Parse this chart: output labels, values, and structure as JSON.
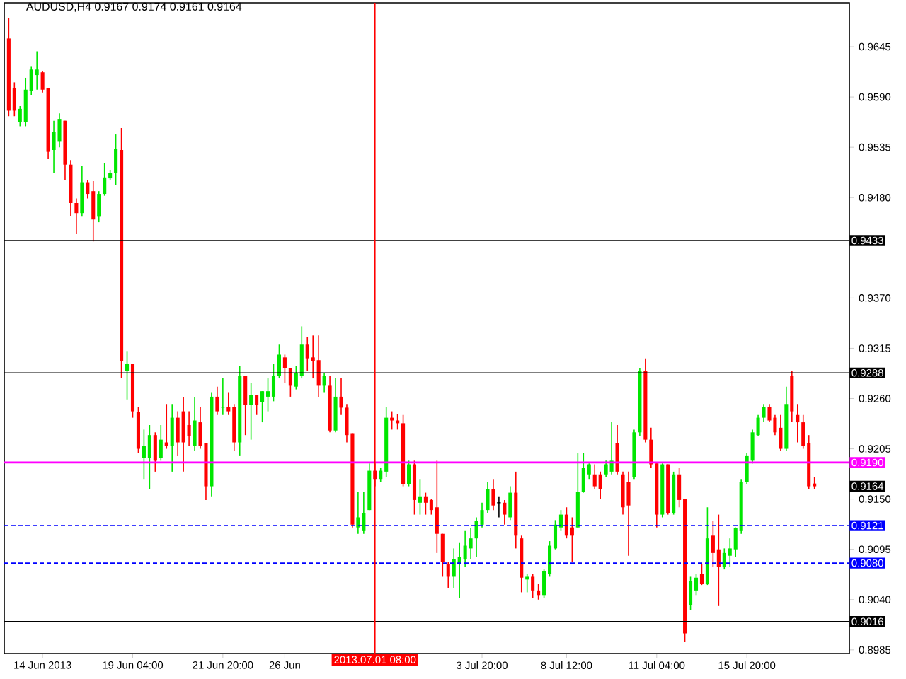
{
  "chart_data": {
    "type": "candlestick",
    "title": "AUDUSD,H4  0.9167 0.9174 0.9161 0.9164",
    "categories": [
      null,
      null,
      null,
      null,
      null,
      null,
      "14 Jun 2013",
      null,
      null,
      null,
      null,
      null,
      null,
      null,
      null,
      null,
      null,
      null,
      null,
      null,
      null,
      null,
      "19 Jun 04:00",
      null,
      null,
      null,
      null,
      null,
      null,
      null,
      null,
      null,
      null,
      null,
      null,
      null,
      null,
      null,
      "21 Jun 20:00",
      null,
      null,
      null,
      null,
      null,
      null,
      null,
      null,
      null,
      null,
      "26 Jun",
      null,
      null,
      null,
      null,
      null,
      null,
      null,
      null,
      null,
      null,
      null,
      null,
      null,
      null,
      null,
      "2013.07.01 08:00",
      null,
      null,
      null,
      null,
      null,
      null,
      null,
      null,
      null,
      null,
      null,
      null,
      null,
      null,
      null,
      null,
      null,
      null,
      "3 Jul 20:00",
      null,
      null,
      null,
      null,
      null,
      null,
      null,
      null,
      null,
      null,
      null,
      null,
      null,
      null,
      "8 Jul 12:00",
      null,
      null,
      null,
      null,
      null,
      null,
      null,
      null,
      null,
      null,
      null,
      null,
      null,
      null,
      null,
      "11 Jul 04:00",
      null,
      null,
      null,
      null,
      null,
      null,
      null,
      null,
      null,
      null,
      null,
      null,
      null,
      null,
      null,
      "15 Jul 20:00",
      null,
      null,
      null,
      null,
      null,
      null,
      null,
      null,
      null,
      null,
      null,
      null
    ],
    "ohlc": [
      [
        0.9654,
        0.9676,
        0.9569,
        0.9575
      ],
      [
        0.96,
        0.9606,
        0.9569,
        0.9575
      ],
      [
        0.9563,
        0.958,
        0.9558,
        0.9577
      ],
      [
        0.9563,
        0.9611,
        0.9558,
        0.9598
      ],
      [
        0.9597,
        0.9623,
        0.9592,
        0.962
      ],
      [
        0.9614,
        0.964,
        0.9598,
        0.962
      ],
      [
        0.9617,
        0.9618,
        0.9595,
        0.9598
      ],
      [
        0.96,
        0.96,
        0.9522,
        0.953
      ],
      [
        0.9532,
        0.9564,
        0.9507,
        0.9552
      ],
      [
        0.9541,
        0.9572,
        0.9535,
        0.9566
      ],
      [
        0.9564,
        0.9564,
        0.9499,
        0.9516
      ],
      [
        0.9516,
        0.9521,
        0.946,
        0.9474
      ],
      [
        0.9474,
        0.9479,
        0.944,
        0.9463
      ],
      [
        0.9463,
        0.9515,
        0.9459,
        0.9496
      ],
      [
        0.9496,
        0.9499,
        0.9479,
        0.9484
      ],
      [
        0.9487,
        0.9498,
        0.9432,
        0.9456
      ],
      [
        0.9459,
        0.9487,
        0.9453,
        0.9484
      ],
      [
        0.9484,
        0.9518,
        0.9482,
        0.9502
      ],
      [
        0.9501,
        0.951,
        0.9499,
        0.9507
      ],
      [
        0.9507,
        0.9549,
        0.9494,
        0.9533
      ],
      [
        0.9532,
        0.9556,
        0.9282,
        0.9301
      ],
      [
        0.929,
        0.9312,
        0.9259,
        0.9298
      ],
      [
        0.9298,
        0.9298,
        0.9239,
        0.9246
      ],
      [
        0.9245,
        0.9251,
        0.92,
        0.9205
      ],
      [
        0.9195,
        0.9226,
        0.9172,
        0.9208
      ],
      [
        0.9195,
        0.9231,
        0.9161,
        0.922
      ],
      [
        0.922,
        0.9223,
        0.918,
        0.9192
      ],
      [
        0.9195,
        0.9231,
        0.9192,
        0.9215
      ],
      [
        0.9212,
        0.9254,
        0.9205,
        0.9208
      ],
      [
        0.9208,
        0.9254,
        0.918,
        0.9239
      ],
      [
        0.9239,
        0.9246,
        0.9197,
        0.9212
      ],
      [
        0.9246,
        0.9262,
        0.918,
        0.9212
      ],
      [
        0.9231,
        0.9246,
        0.9208,
        0.9219
      ],
      [
        0.9208,
        0.9262,
        0.9203,
        0.9236
      ],
      [
        0.9234,
        0.9251,
        0.9205,
        0.9208
      ],
      [
        0.9211,
        0.9211,
        0.9149,
        0.9164
      ],
      [
        0.9164,
        0.9267,
        0.9153,
        0.9262
      ],
      [
        0.9262,
        0.9273,
        0.9242,
        0.9246
      ],
      [
        0.925,
        0.9282,
        0.9242,
        0.9251
      ],
      [
        0.9251,
        0.9267,
        0.9242,
        0.9246
      ],
      [
        0.9251,
        0.9254,
        0.9203,
        0.9212
      ],
      [
        0.9212,
        0.9296,
        0.9197,
        0.9285
      ],
      [
        0.9285,
        0.9285,
        0.922,
        0.9253
      ],
      [
        0.9253,
        0.9277,
        0.9215,
        0.9264
      ],
      [
        0.9264,
        0.9264,
        0.9242,
        0.9253
      ],
      [
        0.9256,
        0.9268,
        0.9234,
        0.9268
      ],
      [
        0.9262,
        0.9282,
        0.9246,
        0.9268
      ],
      [
        0.9262,
        0.9298,
        0.9257,
        0.9285
      ],
      [
        0.9285,
        0.9319,
        0.9282,
        0.9308
      ],
      [
        0.9305,
        0.9308,
        0.9277,
        0.9293
      ],
      [
        0.9293,
        0.9293,
        0.9262,
        0.9274
      ],
      [
        0.9273,
        0.9296,
        0.927,
        0.9288
      ],
      [
        0.9285,
        0.9339,
        0.9282,
        0.9319
      ],
      [
        0.9319,
        0.9327,
        0.929,
        0.9304
      ],
      [
        0.9305,
        0.9329,
        0.9282,
        0.9301
      ],
      [
        0.9302,
        0.9329,
        0.9262,
        0.9274
      ],
      [
        0.9274,
        0.9288,
        0.9267,
        0.9285
      ],
      [
        0.9274,
        0.9285,
        0.9223,
        0.9225
      ],
      [
        0.9225,
        0.9282,
        0.9223,
        0.9262
      ],
      [
        0.9262,
        0.9282,
        0.9242,
        0.925
      ],
      [
        0.925,
        0.9254,
        0.9212,
        0.922
      ],
      [
        0.9222,
        0.9222,
        0.9119,
        0.9122
      ],
      [
        0.9119,
        0.9158,
        0.9112,
        0.913
      ],
      [
        0.9115,
        0.9158,
        0.9112,
        0.9135
      ],
      [
        0.9138,
        0.9189,
        0.9138,
        0.9181
      ],
      [
        0.9181,
        0.9189,
        0.9164,
        0.9172
      ],
      [
        0.9172,
        0.9184,
        0.9169,
        0.9181
      ],
      [
        0.918,
        0.9251,
        0.9174,
        0.9239
      ],
      [
        0.9239,
        0.9246,
        0.9226,
        0.9236
      ],
      [
        0.9236,
        0.9243,
        0.9226,
        0.9233
      ],
      [
        0.9233,
        0.9242,
        0.9164,
        0.9166
      ],
      [
        0.9166,
        0.9192,
        0.9164,
        0.9188
      ],
      [
        0.9188,
        0.9192,
        0.9133,
        0.9149
      ],
      [
        0.9146,
        0.9172,
        0.9133,
        0.9153
      ],
      [
        0.9153,
        0.9157,
        0.9133,
        0.9146
      ],
      [
        0.9149,
        0.915,
        0.9133,
        0.9138
      ],
      [
        0.9141,
        0.9192,
        0.9091,
        0.9112
      ],
      [
        0.9112,
        0.9112,
        0.9065,
        0.9081
      ],
      [
        0.9079,
        0.9081,
        0.9053,
        0.9065
      ],
      [
        0.9065,
        0.9096,
        0.9053,
        0.9084
      ],
      [
        0.9079,
        0.9102,
        0.9042,
        0.9087
      ],
      [
        0.9084,
        0.9115,
        0.9076,
        0.9099
      ],
      [
        0.9096,
        0.9118,
        0.9084,
        0.9107
      ],
      [
        0.9107,
        0.913,
        0.9087,
        0.9126
      ],
      [
        0.9122,
        0.9146,
        0.9119,
        0.9138
      ],
      [
        0.9138,
        0.9169,
        0.9135,
        0.9161
      ],
      [
        0.9161,
        0.9172,
        0.9138,
        0.9143
      ],
      [
        0.9146,
        0.9153,
        0.913,
        0.9146
      ],
      [
        0.9146,
        0.9149,
        0.9122,
        0.9133
      ],
      [
        0.913,
        0.9164,
        0.9127,
        0.9157
      ],
      [
        0.9157,
        0.918,
        0.9096,
        0.911
      ],
      [
        0.9107,
        0.911,
        0.9048,
        0.9064
      ],
      [
        0.9062,
        0.9068,
        0.9048,
        0.9065
      ],
      [
        0.9065,
        0.9068,
        0.9042,
        0.905
      ],
      [
        0.905,
        0.9057,
        0.904,
        0.9045
      ],
      [
        0.9045,
        0.9073,
        0.9042,
        0.9071
      ],
      [
        0.9068,
        0.9104,
        0.9065,
        0.9099
      ],
      [
        0.9096,
        0.9127,
        0.9095,
        0.9122
      ],
      [
        0.9119,
        0.9138,
        0.9115,
        0.9133
      ],
      [
        0.9133,
        0.9141,
        0.9107,
        0.911
      ],
      [
        0.9119,
        0.913,
        0.9081,
        0.911
      ],
      [
        0.9119,
        0.92,
        0.9118,
        0.9158
      ],
      [
        0.9158,
        0.92,
        0.9157,
        0.9184
      ],
      [
        0.9177,
        0.9189,
        0.9172,
        0.9188
      ],
      [
        0.9177,
        0.9188,
        0.9161,
        0.9164
      ],
      [
        0.9177,
        0.918,
        0.915,
        0.9161
      ],
      [
        0.9177,
        0.9192,
        0.9174,
        0.9188
      ],
      [
        0.918,
        0.9234,
        0.9177,
        0.9192
      ],
      [
        0.9211,
        0.9231,
        0.9177,
        0.918
      ],
      [
        0.9177,
        0.918,
        0.9133,
        0.9141
      ],
      [
        0.9169,
        0.918,
        0.9088,
        0.9143
      ],
      [
        0.9174,
        0.9226,
        0.9172,
        0.9223
      ],
      [
        0.9223,
        0.9293,
        0.9219,
        0.929
      ],
      [
        0.929,
        0.9304,
        0.9212,
        0.9215
      ],
      [
        0.9215,
        0.9228,
        0.9184,
        0.9188
      ],
      [
        0.9189,
        0.9189,
        0.9119,
        0.9133
      ],
      [
        0.9133,
        0.9189,
        0.913,
        0.9188
      ],
      [
        0.9188,
        0.9188,
        0.9133,
        0.9135
      ],
      [
        0.9135,
        0.918,
        0.9133,
        0.9177
      ],
      [
        0.9177,
        0.9184,
        0.9141,
        0.9149
      ],
      [
        0.915,
        0.915,
        0.8994,
        0.9003
      ],
      [
        0.9034,
        0.9065,
        0.9029,
        0.906
      ],
      [
        0.905,
        0.9068,
        0.9045,
        0.9064
      ],
      [
        0.9068,
        0.9079,
        0.9056,
        0.9057
      ],
      [
        0.9057,
        0.9141,
        0.9056,
        0.9107
      ],
      [
        0.911,
        0.9126,
        0.9076,
        0.9091
      ],
      [
        0.9095,
        0.9133,
        0.9033,
        0.9076
      ],
      [
        0.9076,
        0.9096,
        0.9073,
        0.9091
      ],
      [
        0.9088,
        0.9107,
        0.9076,
        0.9096
      ],
      [
        0.9095,
        0.9119,
        0.9087,
        0.9118
      ],
      [
        0.9115,
        0.9172,
        0.9112,
        0.9169
      ],
      [
        0.9169,
        0.92,
        0.9166,
        0.9197
      ],
      [
        0.9192,
        0.9226,
        0.9189,
        0.9223
      ],
      [
        0.922,
        0.9242,
        0.9219,
        0.9239
      ],
      [
        0.9239,
        0.9254,
        0.9234,
        0.9251
      ],
      [
        0.9251,
        0.9254,
        0.9234,
        0.9236
      ],
      [
        0.9239,
        0.9242,
        0.922,
        0.9223
      ],
      [
        0.9228,
        0.9242,
        0.9203,
        0.9205
      ],
      [
        0.9205,
        0.9273,
        0.9203,
        0.9254
      ],
      [
        0.9285,
        0.929,
        0.9234,
        0.9246
      ],
      [
        0.9242,
        0.9254,
        0.9212,
        0.9234
      ],
      [
        0.9234,
        0.9242,
        0.9205,
        0.9208
      ],
      [
        0.9211,
        0.922,
        0.9161,
        0.9164
      ],
      [
        0.9167,
        0.9174,
        0.9161,
        0.9164
      ]
    ],
    "colors": [
      "#ff0000",
      "#ff0000",
      "#00e600",
      "#00e600",
      "#00e600",
      "#00e600",
      "#ff0000",
      "#ff0000",
      "#00e600",
      "#00e600",
      "#ff0000",
      "#ff0000",
      "#ff0000",
      "#00e600",
      "#ff0000",
      "#ff0000",
      "#00e600",
      "#00e600",
      "#00e600",
      "#00e600",
      "#ff0000",
      "#00e600",
      "#ff0000",
      "#ff0000",
      "#00e600",
      "#00e600",
      "#ff0000",
      "#00e600",
      "#ff0000",
      "#00e600",
      "#ff0000",
      "#ff0000",
      "#ff0000",
      "#00e600",
      "#ff0000",
      "#ff0000",
      "#00e600",
      "#ff0000",
      "#00e600",
      "#ff0000",
      "#ff0000",
      "#00e600",
      "#ff0000",
      "#00e600",
      "#ff0000",
      "#00e600",
      "#00e600",
      "#00e600",
      "#00e600",
      "#ff0000",
      "#ff0000",
      "#00e600",
      "#00e600",
      "#ff0000",
      "#ff0000",
      "#ff0000",
      "#00e600",
      "#ff0000",
      "#00e600",
      "#ff0000",
      "#ff0000",
      "#ff0000",
      "#00e600",
      "#00e600",
      "#00e600",
      "#ff0000",
      "#00e600",
      "#00e600",
      "#ff0000",
      "#ff0000",
      "#ff0000",
      "#00e600",
      "#ff0000",
      "#00e600",
      "#ff0000",
      "#ff0000",
      "#ff0000",
      "#ff0000",
      "#ff0000",
      "#00e600",
      "#00e600",
      "#00e600",
      "#00e600",
      "#00e600",
      "#00e600",
      "#00e600",
      "#ff0000",
      "#000000",
      "#ff0000",
      "#00e600",
      "#ff0000",
      "#ff0000",
      "#00e600",
      "#ff0000",
      "#ff0000",
      "#00e600",
      "#00e600",
      "#00e600",
      "#00e600",
      "#ff0000",
      "#ff0000",
      "#00e600",
      "#00e600",
      "#00e600",
      "#ff0000",
      "#ff0000",
      "#00e600",
      "#00e600",
      "#ff0000",
      "#ff0000",
      "#ff0000",
      "#00e600",
      "#00e600",
      "#ff0000",
      "#ff0000",
      "#ff0000",
      "#00e600",
      "#ff0000",
      "#00e600",
      "#ff0000",
      "#ff0000",
      "#00e600",
      "#00e600",
      "#ff0000",
      "#00e600",
      "#ff0000",
      "#ff0000",
      "#00e600",
      "#00e600",
      "#00e600",
      "#00e600",
      "#00e600",
      "#00e600",
      "#00e600",
      "#00e600",
      "#ff0000",
      "#ff0000",
      "#ff0000",
      "#00e600",
      "#ff0000",
      "#ff0000",
      "#ff0000",
      "#ff0000",
      "#ff0000"
    ],
    "ylim": [
      0.8981,
      0.9693
    ],
    "yticks": [
      0.8985,
      {
        "value": 0.904,
        "label": "0.9040"
      },
      0.9095,
      {
        "value": 0.915,
        "label": "0.9150"
      },
      0.9205,
      {
        "value": 0.926,
        "label": "0.9260"
      },
      0.9315,
      {
        "value": 0.937,
        "label": "0.9370"
      },
      {
        "value": 0.948,
        "label": "0.9480"
      },
      0.9535,
      {
        "value": 0.959,
        "label": "0.9590"
      },
      0.9645
    ],
    "ref_lines": [
      {
        "axis": "y",
        "value": 0.9433,
        "label": "0.9433",
        "color": "#000000",
        "line_style": "solid"
      },
      {
        "axis": "y",
        "value": 0.9288,
        "label": "0.9288",
        "color": "#000000",
        "line_style": "solid"
      },
      {
        "axis": "y",
        "value": 0.919,
        "label": "0.9190",
        "color": "#ff00ff",
        "line_style": "solid"
      },
      {
        "axis": "y",
        "value": 0.9121,
        "label": "0.9121",
        "color": "#0000ff",
        "line_style": "dashed"
      },
      {
        "axis": "y",
        "value": 0.908,
        "label": "0.9080",
        "color": "#0000ff",
        "line_style": "dashed"
      },
      {
        "axis": "y",
        "value": 0.9016,
        "label": "0.9016",
        "color": "#000000",
        "line_style": "solid"
      },
      {
        "axis": "x",
        "value": "2013.07.01 08:00",
        "color": "#ff0000",
        "line_style": "solid"
      }
    ],
    "annotations": [
      "0.9164"
    ]
  }
}
